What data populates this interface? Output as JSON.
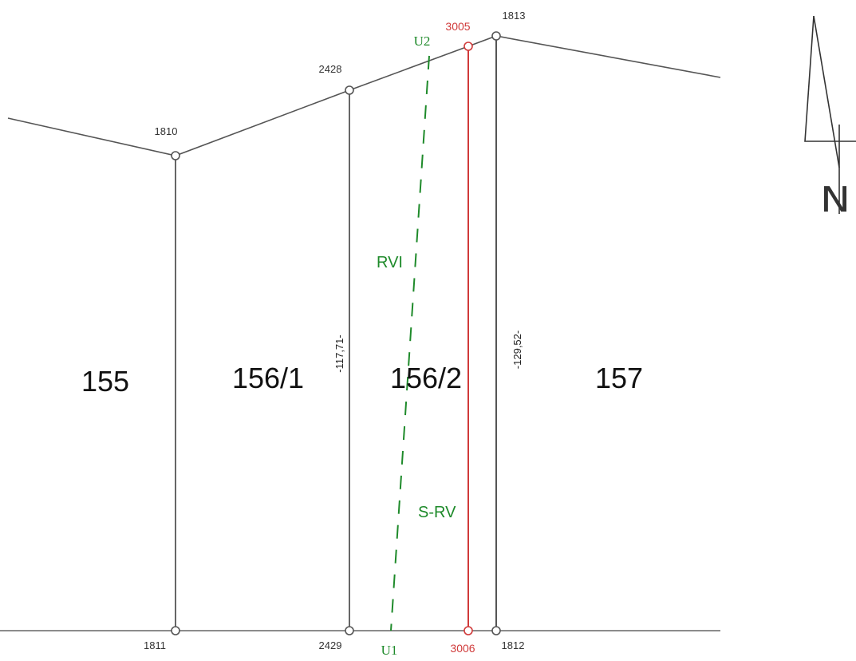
{
  "map": {
    "parcels": [
      {
        "id": "p155",
        "label": "155"
      },
      {
        "id": "p156_1",
        "label": "156/1"
      },
      {
        "id": "p156_2",
        "label": "156/2"
      },
      {
        "id": "p157",
        "label": "157"
      }
    ],
    "points": {
      "p1810": "1810",
      "p2428": "2428",
      "p3005": "3005",
      "p1813": "1813",
      "p1811": "1811",
      "p2429": "2429",
      "p3006": "3006",
      "p1812": "1812"
    },
    "dimensions": {
      "left": "-117,71-",
      "right": "-129,52-"
    },
    "dashed_line": {
      "top_label": "U2",
      "bottom_label": "U1",
      "upper_label": "RVI",
      "lower_label": "S-RV"
    },
    "north_label": "N",
    "colors": {
      "boundary": "#555555",
      "new_boundary": "#d03a3a",
      "dashed": "#1e8a2a"
    }
  }
}
